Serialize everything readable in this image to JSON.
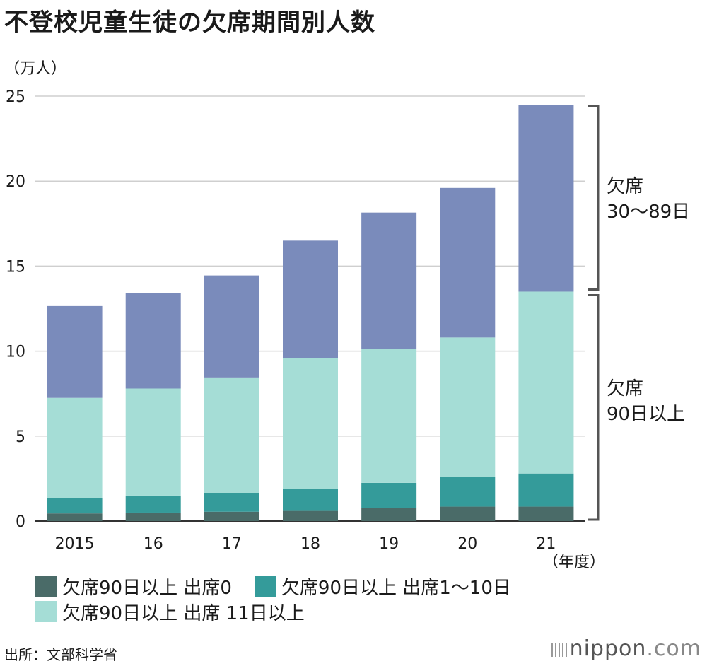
{
  "title": "不登校児童生徒の欠席期間別人数",
  "unit": "（万人）",
  "year_suffix": "（年度）",
  "source": "出所：文部科学省",
  "brand": {
    "name": "nippon",
    "tld": ".com",
    "dot": "."
  },
  "brackets": [
    {
      "line1": "欠席",
      "line2": "30〜89日"
    },
    {
      "line1": "欠席",
      "line2": "90日以上"
    }
  ],
  "colors": {
    "s0": "#4a6b68",
    "s1": "#349b9a",
    "s2": "#a5ddd6",
    "s3": "#7a8bbb",
    "grid": "#cfcfcf",
    "bracket": "#555555"
  },
  "legend": [
    {
      "label": "欠席90日以上 出席0",
      "color": "#4a6b68"
    },
    {
      "label": "欠席90日以上 出席1〜10日",
      "color": "#349b9a"
    },
    {
      "label": "欠席90日以上 出席 11日以上",
      "color": "#a5ddd6"
    }
  ],
  "chart_data": {
    "type": "bar",
    "stacked": true,
    "title": "不登校児童生徒の欠席期間別人数",
    "ylabel": "（万人）",
    "xlabel": "（年度）",
    "ylim": [
      0,
      25
    ],
    "yticks": [
      0,
      5,
      10,
      15,
      20,
      25
    ],
    "categories": [
      "2015",
      "16",
      "17",
      "18",
      "19",
      "20",
      "21"
    ],
    "series": [
      {
        "name": "欠席90日以上 出席0",
        "values": [
          0.45,
          0.5,
          0.55,
          0.6,
          0.75,
          0.85,
          0.85
        ]
      },
      {
        "name": "欠席90日以上 出席1〜10日",
        "values": [
          0.9,
          1.0,
          1.1,
          1.3,
          1.5,
          1.75,
          1.95
        ]
      },
      {
        "name": "欠席90日以上 出席 11日以上",
        "values": [
          5.9,
          6.3,
          6.8,
          7.7,
          7.9,
          8.2,
          10.7
        ]
      },
      {
        "name": "欠席30〜89日",
        "values": [
          5.4,
          5.6,
          6.0,
          6.9,
          8.0,
          8.8,
          11.0
        ]
      }
    ]
  }
}
